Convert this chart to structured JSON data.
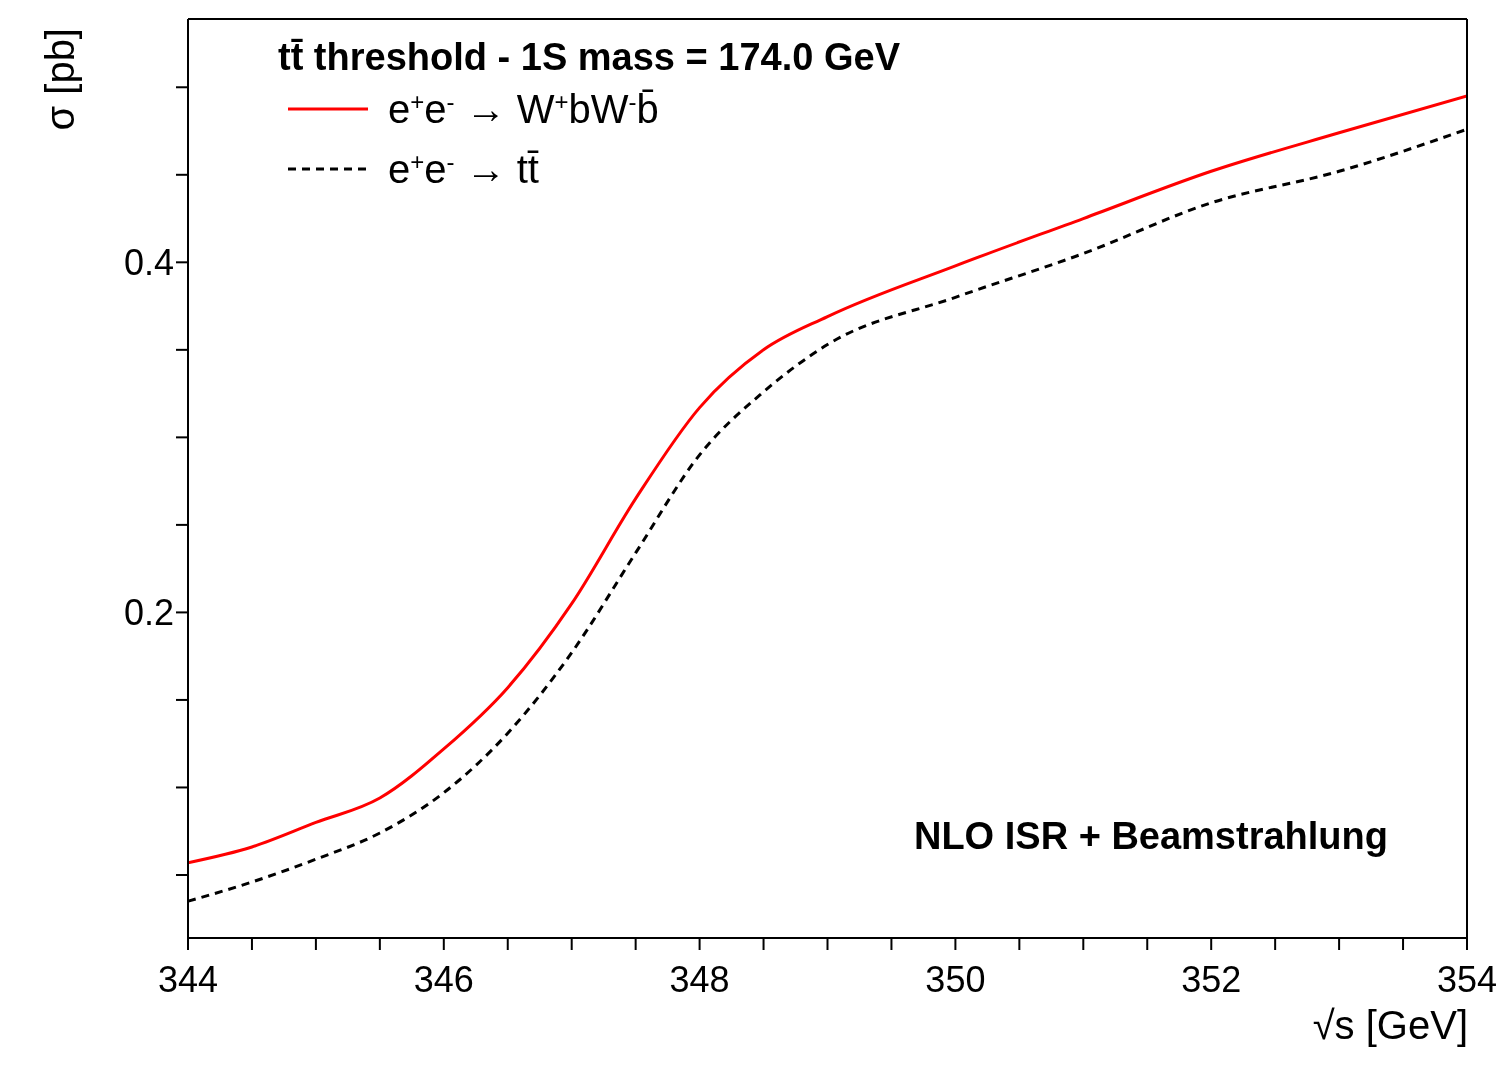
{
  "chart_data": {
    "type": "line",
    "legend_title": "tt̄ threshold - 1S mass = 174.0 GeV",
    "xlabel": "√s [GeV]",
    "ylabel": "σ [pb]",
    "annotations": [
      "NLO ISR + Beamstrahlung"
    ],
    "x": [
      344,
      344.5,
      345,
      345.5,
      346,
      346.5,
      347,
      347.5,
      348,
      348.5,
      349,
      350,
      351,
      352,
      353,
      354
    ],
    "series": [
      {
        "name": "e$^{+}$e$^{-}$ → W$^{+}$bW$^{-}$b̄",
        "color": "#ff0000",
        "line_style": "solid",
        "values": [
          0.057,
          0.066,
          0.08,
          0.094,
          0.122,
          0.157,
          0.205,
          0.265,
          0.317,
          0.35,
          0.369,
          0.398,
          0.425,
          0.452,
          0.474,
          0.495
        ]
      },
      {
        "name": "e$^{+}$e$^{-}$ → tt̄",
        "color": "#000000",
        "line_style": "dashed",
        "values": [
          0.035,
          0.046,
          0.059,
          0.074,
          0.097,
          0.131,
          0.177,
          0.234,
          0.29,
          0.326,
          0.353,
          0.38,
          0.405,
          0.434,
          0.452,
          0.476
        ]
      }
    ],
    "xlim": [
      344,
      354
    ],
    "xticks": [
      344,
      {
        "value": 344.5,
        "label": null
      },
      {
        "value": 345,
        "label": null
      },
      {
        "value": 345.5,
        "label": null
      },
      346,
      {
        "value": 346.5,
        "label": null
      },
      {
        "value": 347,
        "label": null
      },
      {
        "value": 347.5,
        "label": null
      },
      348,
      {
        "value": 348.5,
        "label": null
      },
      {
        "value": 349,
        "label": null
      },
      {
        "value": 349.5,
        "label": null
      },
      350,
      {
        "value": 350.5,
        "label": null
      },
      {
        "value": 351,
        "label": null
      },
      {
        "value": 351.5,
        "label": null
      },
      352,
      {
        "value": 352.5,
        "label": null
      },
      {
        "value": 353,
        "label": null
      },
      {
        "value": 353.5,
        "label": null
      },
      354
    ],
    "ylim": [
      0.014,
      0.539
    ],
    "yticks": [
      {
        "value": 0.05,
        "label": null
      },
      {
        "value": 0.1,
        "label": null
      },
      {
        "value": 0.15,
        "label": null
      },
      0.2,
      {
        "value": 0.25,
        "label": null
      },
      {
        "value": 0.3,
        "label": null
      },
      {
        "value": 0.35,
        "label": null
      },
      0.4,
      {
        "value": 0.45,
        "label": null
      },
      {
        "value": 0.5,
        "label": null
      }
    ],
    "grid": false,
    "legend": "top left",
    "marker": "none"
  }
}
